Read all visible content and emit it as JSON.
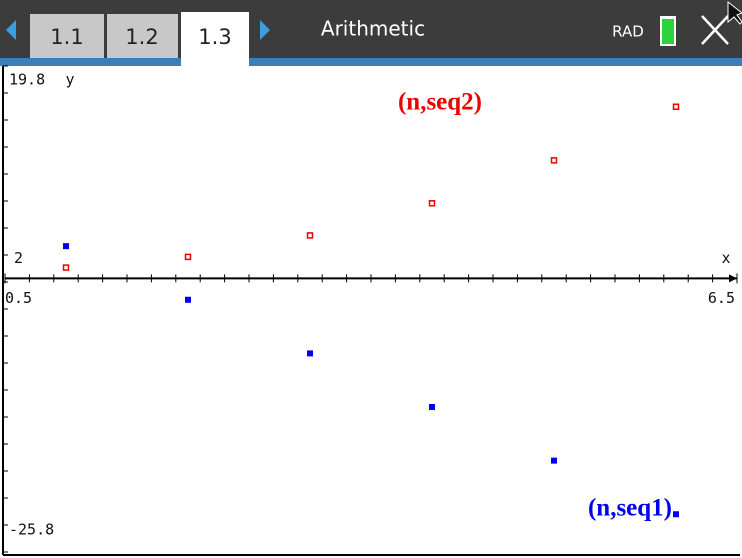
{
  "header": {
    "tabs": [
      "1.1",
      "1.2",
      "1.3"
    ],
    "title": "Arithmetic",
    "mode": "RAD"
  },
  "chart_data": {
    "type": "scatter",
    "x": [
      1,
      2,
      3,
      4,
      5,
      6
    ],
    "series": [
      {
        "name": "(n,seq1)",
        "color": "#0000ee",
        "values": [
          3,
          -2,
          -7,
          -12,
          -17,
          -22
        ]
      },
      {
        "name": "(n,seq2)",
        "color": "#ee0000",
        "values": [
          1,
          2,
          4,
          7,
          11,
          16
        ]
      }
    ],
    "xlim": [
      0.5,
      6.5
    ],
    "ylim": [
      -25.8,
      19.8
    ],
    "xticks": [
      0.5,
      6.5
    ],
    "yticks": [
      -25.8,
      19.8
    ],
    "x_label": "x",
    "y_label": "y",
    "axis_note": "2"
  }
}
